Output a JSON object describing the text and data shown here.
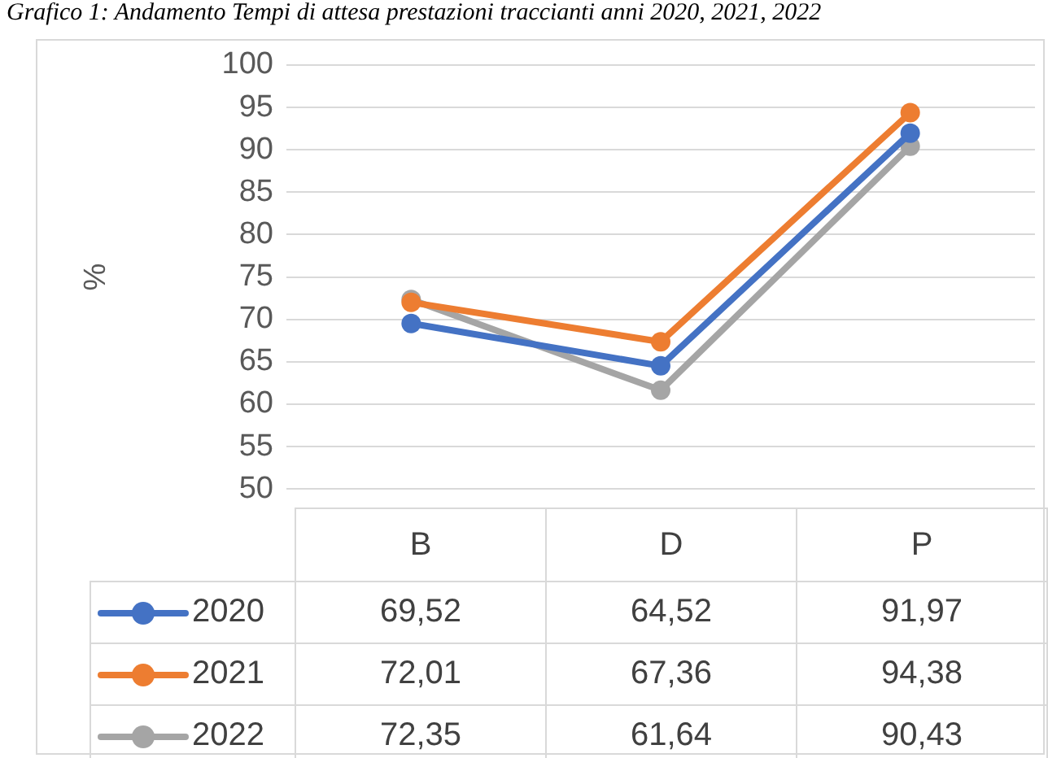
{
  "chart_data": {
    "type": "line",
    "title": "Grafico 1: Andamento Tempi di attesa prestazioni traccianti anni 2020, 2021, 2022",
    "ylabel": "%",
    "categories": [
      "B",
      "D",
      "P"
    ],
    "series": [
      {
        "name": "2020",
        "color": "#4472c4",
        "values": [
          69.52,
          64.52,
          91.97
        ],
        "value_labels": [
          "69,52",
          "64,52",
          "91,97"
        ]
      },
      {
        "name": "2021",
        "color": "#ed7d31",
        "values": [
          72.01,
          67.36,
          94.38
        ],
        "value_labels": [
          "72,01",
          "67,36",
          "94,38"
        ]
      },
      {
        "name": "2022",
        "color": "#a5a5a5",
        "values": [
          72.35,
          61.64,
          90.43
        ],
        "value_labels": [
          "72,35",
          "61,64",
          "90,43"
        ]
      }
    ],
    "ylim": [
      50,
      100
    ],
    "yticks": [
      50,
      55,
      60,
      65,
      70,
      75,
      80,
      85,
      90,
      95,
      100
    ],
    "grid": "y",
    "marker": "circle",
    "line_style": "solid",
    "legend": "bottom left"
  }
}
